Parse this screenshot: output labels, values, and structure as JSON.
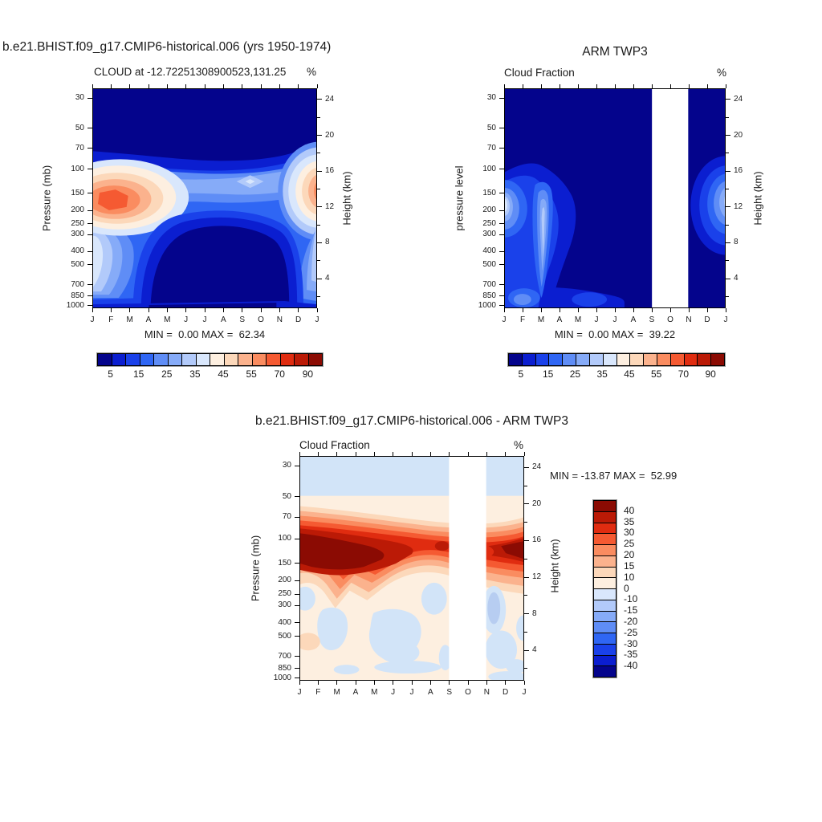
{
  "panels": {
    "model": {
      "title": "b.e21.BHIST.f09_g17.CMIP6-historical.006 (yrs 1950-1974)",
      "subtitle_left": "CLOUD at -12.72251308900523,131.25",
      "subtitle_right": "%",
      "ylabel_left": "Pressure (mb)",
      "ylabel_right": "Height (km)",
      "minmax": "MIN =  0.00 MAX =  62.34"
    },
    "obs": {
      "title": "ARM TWP3",
      "subtitle_left": "Cloud Fraction",
      "subtitle_right": "%",
      "ylabel_left": "pressure level",
      "ylabel_right": "Height (km)",
      "minmax": "MIN =  0.00 MAX =  39.22"
    },
    "diff": {
      "title": "b.e21.BHIST.f09_g17.CMIP6-historical.006 - ARM TWP3",
      "subtitle_left": "Cloud Fraction",
      "subtitle_right": "%",
      "ylabel_left": "Pressure (mb)",
      "ylabel_right": "Height (km)",
      "minmax": "MIN = -13.87 MAX =  52.99"
    }
  },
  "axes": {
    "month_labels": [
      "J",
      "F",
      "M",
      "A",
      "M",
      "J",
      "J",
      "A",
      "S",
      "O",
      "N",
      "D",
      "J"
    ],
    "pressure_ticks": [
      30,
      50,
      70,
      100,
      150,
      200,
      250,
      300,
      400,
      500,
      700,
      850,
      1000
    ],
    "height_ticks": [
      24,
      20,
      16,
      12,
      8,
      4
    ]
  },
  "colorbar": {
    "palette": [
      "#04048c",
      "#0b1ed0",
      "#1a41ea",
      "#2f66f4",
      "#5f8df6",
      "#86abf8",
      "#b2cafa",
      "#d9e7fc",
      "#fdefe0",
      "#fcd8ba",
      "#fbb28d",
      "#fa8c60",
      "#f55a32",
      "#e02c10",
      "#bb1a06",
      "#8b0b03"
    ],
    "horizontal_labels": [
      "5",
      "15",
      "25",
      "35",
      "45",
      "55",
      "70",
      "90"
    ],
    "vertical_labels": [
      "40",
      "35",
      "30",
      "25",
      "20",
      "15",
      "10",
      "0",
      "-10",
      "-15",
      "-20",
      "-25",
      "-30",
      "-35",
      "-40"
    ]
  },
  "chart_data": [
    {
      "type": "heatmap",
      "title": "CLOUD at -12.72251308900523,131.25",
      "panel_title": "b.e21.BHIST.f09_g17.CMIP6-historical.006 (yrs 1950-1974)",
      "units": "%",
      "x": [
        "J",
        "F",
        "M",
        "A",
        "M",
        "J",
        "J",
        "A",
        "S",
        "O",
        "N",
        "D",
        "J"
      ],
      "y_pressure_mb": [
        30,
        50,
        70,
        100,
        150,
        200,
        250,
        300,
        400,
        500,
        700,
        850,
        1000
      ],
      "y2_height_km": [
        24,
        20,
        16,
        12,
        8,
        4
      ],
      "min": 0.0,
      "max": 62.34,
      "contour_levels": [
        5,
        15,
        25,
        35,
        45,
        55,
        70,
        90
      ],
      "summary": "Model cloud fraction annual cycle; maximum ~60% near 150-200 mb in Dec-Feb, broad minimum near 0% in mid/lower troposphere May-Nov"
    },
    {
      "type": "heatmap",
      "title": "Cloud Fraction",
      "panel_title": "ARM TWP3",
      "units": "%",
      "x": [
        "J",
        "F",
        "M",
        "A",
        "M",
        "J",
        "J",
        "A",
        "S",
        "O",
        "N",
        "D",
        "J"
      ],
      "y_pressure_mb": [
        30,
        50,
        70,
        100,
        150,
        200,
        250,
        300,
        400,
        500,
        700,
        850,
        1000
      ],
      "y2_height_km": [
        24,
        20,
        16,
        12,
        8,
        4
      ],
      "min": 0.0,
      "max": 39.22,
      "contour_levels": [
        5,
        15,
        25,
        35,
        45,
        55,
        70,
        90
      ],
      "missing_months": [
        "O"
      ],
      "summary": "Observed ARM TWP3 cloud fraction; maxima ~35% near 200-300 mb in Jan-Mar and Dec; October column missing (white band)"
    },
    {
      "type": "heatmap",
      "title": "Cloud Fraction",
      "panel_title": "b.e21.BHIST.f09_g17.CMIP6-historical.006 - ARM TWP3",
      "units": "%",
      "x": [
        "J",
        "F",
        "M",
        "A",
        "M",
        "J",
        "J",
        "A",
        "S",
        "O",
        "N",
        "D",
        "J"
      ],
      "y_pressure_mb": [
        30,
        50,
        70,
        100,
        150,
        200,
        250,
        300,
        400,
        500,
        700,
        850,
        1000
      ],
      "y2_height_km": [
        24,
        20,
        16,
        12,
        8,
        4
      ],
      "min": -13.87,
      "max": 52.99,
      "contour_levels": [
        -40,
        -35,
        -30,
        -25,
        -20,
        -15,
        -10,
        0,
        10,
        15,
        20,
        25,
        30,
        35,
        40
      ],
      "missing_months": [
        "O"
      ],
      "summary": "Model minus observations; strong positive bias up to ~53% near 100-150 mb (peak Dec-Mar); weak negative bias aloft (30-50 mb) and patchy below 300 mb; October missing"
    }
  ]
}
